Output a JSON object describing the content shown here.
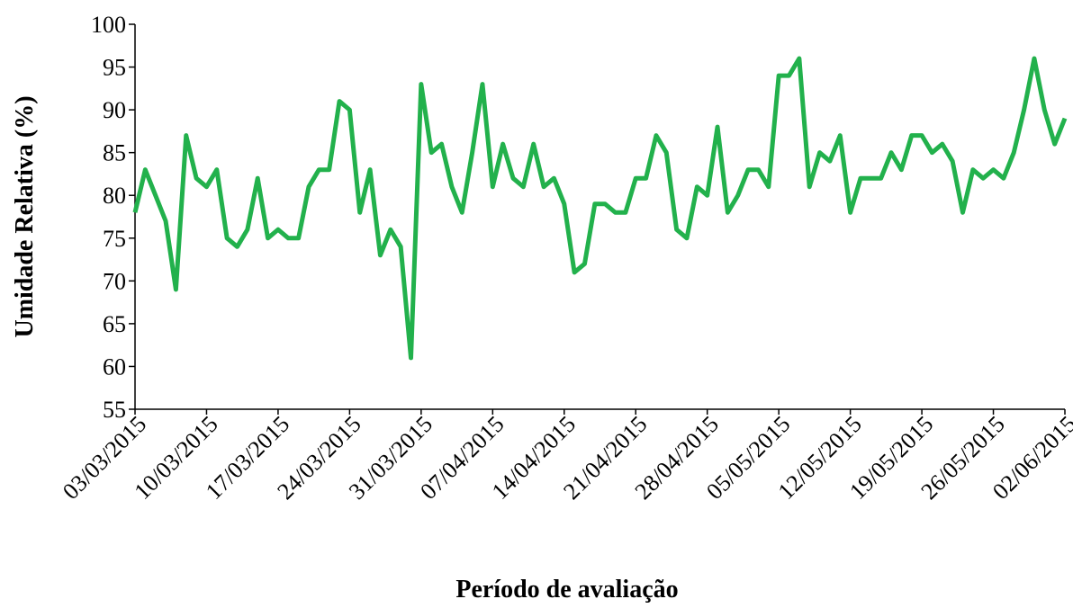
{
  "chart_data": {
    "type": "line",
    "y_label": "Umidade Relativa  (%)",
    "x_label": "Período de avaliação",
    "categories": [
      "03/03/2015",
      null,
      null,
      null,
      null,
      null,
      null,
      "10/03/2015",
      null,
      null,
      null,
      null,
      null,
      null,
      "17/03/2015",
      null,
      null,
      null,
      null,
      null,
      null,
      "24/03/2015",
      null,
      null,
      null,
      null,
      null,
      null,
      "31/03/2015",
      null,
      null,
      null,
      null,
      null,
      null,
      "07/04/2015",
      null,
      null,
      null,
      null,
      null,
      null,
      "14/04/2015",
      null,
      null,
      null,
      null,
      null,
      null,
      "21/04/2015",
      null,
      null,
      null,
      null,
      null,
      null,
      "28/04/2015",
      null,
      null,
      null,
      null,
      null,
      null,
      "05/05/2015",
      null,
      null,
      null,
      null,
      null,
      null,
      "12/05/2015",
      null,
      null,
      null,
      null,
      null,
      null,
      "19/05/2015",
      null,
      null,
      null,
      null,
      null,
      null,
      "26/05/2015",
      null,
      null,
      null,
      null,
      null,
      null,
      "02/06/2015"
    ],
    "values": [
      78,
      83,
      80,
      77,
      69,
      87,
      82,
      81,
      83,
      75,
      74,
      76,
      82,
      75,
      76,
      75,
      75,
      81,
      83,
      83,
      91,
      90,
      78,
      83,
      73,
      76,
      74,
      61,
      93,
      85,
      86,
      81,
      78,
      85,
      93,
      81,
      86,
      82,
      81,
      86,
      81,
      82,
      79,
      71,
      72,
      79,
      79,
      78,
      78,
      82,
      82,
      87,
      85,
      76,
      75,
      81,
      80,
      88,
      78,
      80,
      83,
      83,
      81,
      94,
      94,
      96,
      81,
      85,
      84,
      87,
      78,
      82,
      82,
      82,
      85,
      83,
      87,
      87,
      85,
      86,
      84,
      78,
      83,
      82,
      83,
      82,
      85,
      90,
      96,
      90,
      86,
      89
    ],
    "color": "#22b14c",
    "ylim": [
      55,
      100
    ],
    "yticks": [
      55,
      60,
      65,
      70,
      75,
      80,
      85,
      90,
      95,
      100
    ],
    "grid": false
  }
}
